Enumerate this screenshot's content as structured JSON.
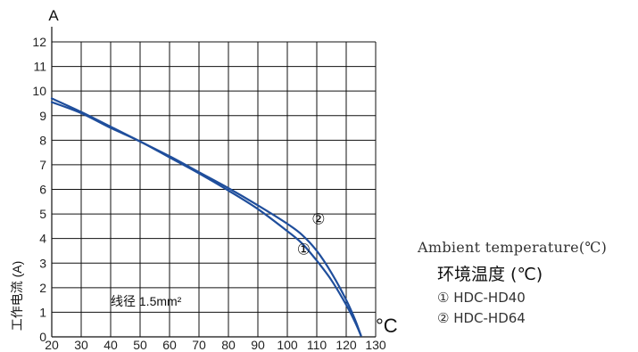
{
  "chart_data": {
    "type": "line",
    "y_unit": "A",
    "x_unit": "°C",
    "ylabel": "工作电流 (A)",
    "annotation": "线径 1.5mm²",
    "xlim": [
      20,
      130
    ],
    "ylim": [
      0,
      12
    ],
    "x_ticks": [
      20,
      30,
      40,
      50,
      60,
      70,
      80,
      90,
      100,
      110,
      120,
      130
    ],
    "y_ticks": [
      0,
      1,
      2,
      3,
      4,
      5,
      6,
      7,
      8,
      9,
      10,
      11,
      12
    ],
    "grid": true,
    "line_color": "#1f4e9c",
    "series": [
      {
        "name": "①",
        "x": [
          20,
          30,
          40,
          50,
          60,
          70,
          80,
          90,
          100,
          105,
          110,
          115,
          120,
          123,
          125
        ],
        "y": [
          9.55,
          9.1,
          8.5,
          7.95,
          7.3,
          6.65,
          5.95,
          5.2,
          4.3,
          3.8,
          3.1,
          2.3,
          1.3,
          0.6,
          0.05
        ]
      },
      {
        "name": "②",
        "x": [
          20,
          30,
          40,
          50,
          60,
          70,
          80,
          90,
          100,
          105,
          110,
          115,
          120,
          123,
          125
        ],
        "y": [
          9.7,
          9.15,
          8.55,
          7.95,
          7.35,
          6.7,
          6.05,
          5.35,
          4.6,
          4.15,
          3.5,
          2.6,
          1.5,
          0.7,
          0.05
        ]
      }
    ]
  },
  "legend": {
    "title_en": "Ambient temperature(℃)",
    "title_zh": "环境温度 (℃)",
    "items": [
      "① HDC-HD40",
      "② HDC-HD64"
    ]
  }
}
